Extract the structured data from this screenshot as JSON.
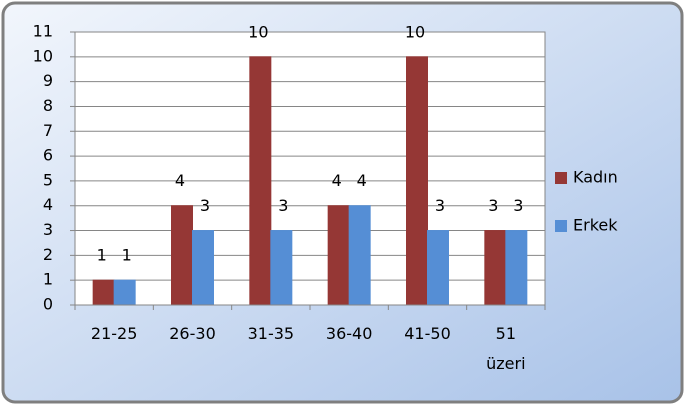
{
  "chart_data": {
    "type": "bar",
    "categories": [
      "21-25",
      "26-30",
      "31-35",
      "36-40",
      "41-50",
      "51 üzeri"
    ],
    "series": [
      {
        "name": "Kadın",
        "color": "#953735",
        "values": [
          1,
          4,
          10,
          4,
          10,
          3
        ]
      },
      {
        "name": "Erkek",
        "color": "#558ed5",
        "values": [
          1,
          3,
          3,
          4,
          3,
          3
        ]
      }
    ],
    "ylim": [
      0,
      11
    ],
    "yticks": [
      0,
      1,
      2,
      3,
      4,
      5,
      6,
      7,
      8,
      9,
      10,
      11
    ],
    "grid": true,
    "legend": "right"
  }
}
